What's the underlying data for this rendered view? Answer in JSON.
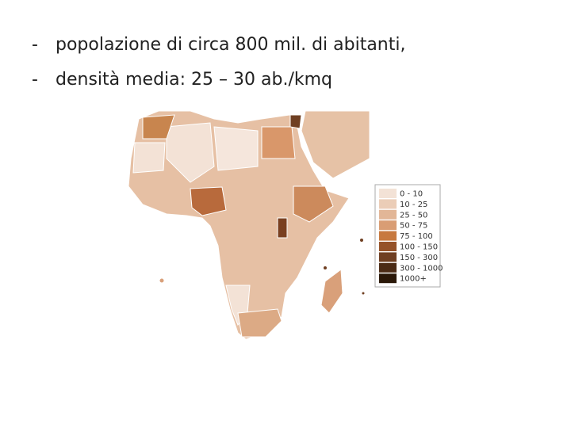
{
  "bullets": [
    {
      "marker": "-",
      "text": "popolazione di circa 800 mil. di abitanti,"
    },
    {
      "marker": "-",
      "text": "densità media: 25 – 30 ab./kmq"
    }
  ],
  "legend": [
    {
      "label": "0 - 10",
      "color": "#f3e2d6"
    },
    {
      "label": "10 - 25",
      "color": "#ebcdb7"
    },
    {
      "label": "25 - 50",
      "color": "#e2b697"
    },
    {
      "label": "50 - 75",
      "color": "#d99d74"
    },
    {
      "label": "75 - 100",
      "color": "#c7793f"
    },
    {
      "label": "100 - 150",
      "color": "#955229"
    },
    {
      "label": "150 - 300",
      "color": "#6f3f22"
    },
    {
      "label": "300 - 1000",
      "color": "#4b2b15"
    },
    {
      "label": "1000+",
      "color": "#2a1808"
    }
  ]
}
